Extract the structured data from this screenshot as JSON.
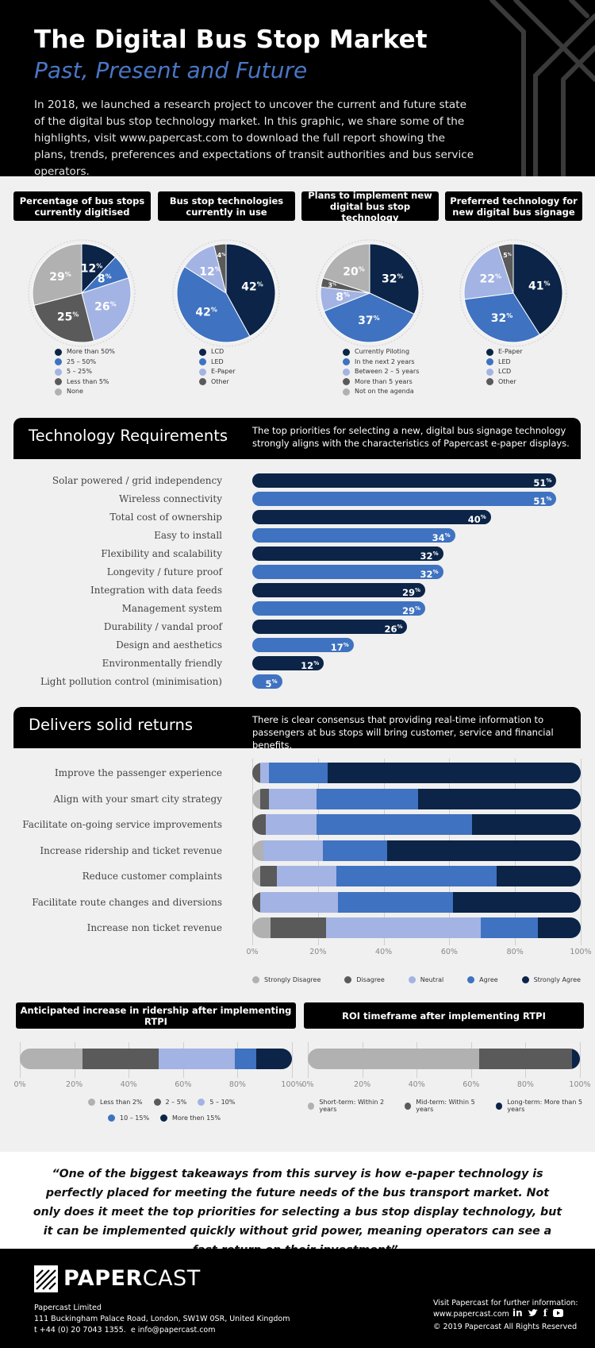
{
  "header": {
    "title": "The Digital Bus Stop Market",
    "subtitle": "Past, Present and Future",
    "intro": "In 2018, we launched a research project to uncover the current and future state of the digital bus stop technology market. In this graphic, we share some of the highlights, visit www.papercast.com to download the full report showing the plans, trends, preferences and expectations of transit authorities and bus service operators."
  },
  "colors": {
    "navy": "#0b2447",
    "blue": "#3f72c0",
    "light_blue": "#a3b3e3",
    "dark_grey": "#5a5a5a",
    "light_grey": "#b1b1b1",
    "black": "#000000",
    "accent_text": "#4a76c4"
  },
  "tech_section": {
    "title": "Technology Requirements",
    "text": "The top priorities for selecting a new, digital bus signage technology strongly aligns with the characteristics of Papercast e-paper displays."
  },
  "returns_section": {
    "title": "Delivers solid returns",
    "text": "There is clear consensus that providing real-time information to passengers at bus stops will bring customer, service and financial benefits."
  },
  "quote": "“One of the biggest takeaways from this survey is how e-paper technology is perfectly placed for meeting the future needs of the bus transport market. Not only does it meet the top priorities for selecting a bus stop display technology, but it can be implemented quickly without grid power, meaning operators can see a fast return on their investment”.",
  "footer": {
    "brand": "PAPER",
    "brand2": "CAST",
    "company": "Papercast Limited",
    "address": "111 Buckingham Palace Road, London, SW1W 0SR, United Kingdom",
    "phone": "t +44 (0) 20 7043 1355.",
    "email": "e info@papercast.com",
    "visit": "Visit Papercast for further information:",
    "website": "www.papercast.com",
    "copyright": "© 2019 Papercast All Rights Reserved"
  },
  "chart_data": [
    {
      "type": "pie",
      "title": "Percentage of bus stops currently digitised",
      "slices": [
        {
          "name": "More than 50%",
          "value": 12,
          "color": "#0b2447"
        },
        {
          "name": "25 – 50%",
          "value": 8,
          "color": "#3f72c0"
        },
        {
          "name": "5 – 25%",
          "value": 26,
          "color": "#a3b3e3"
        },
        {
          "name": "Less than 5%",
          "value": 25,
          "color": "#5a5a5a"
        },
        {
          "name": "None",
          "value": 29,
          "color": "#b1b1b1"
        }
      ]
    },
    {
      "type": "pie",
      "title": "Bus stop technologies currently in use",
      "slices": [
        {
          "name": "LCD",
          "value": 42,
          "color": "#0b2447"
        },
        {
          "name": "LED",
          "value": 42,
          "color": "#3f72c0"
        },
        {
          "name": "E-Paper",
          "value": 12,
          "color": "#a3b3e3"
        },
        {
          "name": "Other",
          "value": 4,
          "color": "#5a5a5a"
        }
      ]
    },
    {
      "type": "pie",
      "title": "Plans to implement new digital bus stop technology",
      "slices": [
        {
          "name": "Currently Piloting",
          "value": 32,
          "color": "#0b2447"
        },
        {
          "name": "In the next 2 years",
          "value": 37,
          "color": "#3f72c0"
        },
        {
          "name": "Between 2 – 5 years",
          "value": 8,
          "color": "#a3b3e3"
        },
        {
          "name": "More than 5 years",
          "value": 3,
          "color": "#5a5a5a"
        },
        {
          "name": "Not on the agenda",
          "value": 20,
          "color": "#b1b1b1"
        }
      ]
    },
    {
      "type": "pie",
      "title": "Preferred technology for new digital bus signage",
      "slices": [
        {
          "name": "E-Paper",
          "value": 41,
          "color": "#0b2447"
        },
        {
          "name": "LED",
          "value": 32,
          "color": "#3f72c0"
        },
        {
          "name": "LCD",
          "value": 22,
          "color": "#a3b3e3"
        },
        {
          "name": "Other",
          "value": 5,
          "color": "#5a5a5a"
        }
      ]
    },
    {
      "type": "bar",
      "title": "Technology Requirements",
      "categories": [
        "Solar powered / grid independency",
        "Wireless connectivity",
        "Total cost of ownership",
        "Easy to install",
        "Flexibility and scalability",
        "Longevity / future proof",
        "Integration with data feeds",
        "Management system",
        "Durability / vandal proof",
        "Design and aesthetics",
        "Environmentally friendly",
        "Light pollution control (minimisation)"
      ],
      "values": [
        51,
        51,
        40,
        34,
        32,
        32,
        29,
        29,
        26,
        17,
        12,
        5
      ],
      "colors": [
        "#0b2447",
        "#3f72c0",
        "#0b2447",
        "#3f72c0",
        "#0b2447",
        "#3f72c0",
        "#0b2447",
        "#3f72c0",
        "#0b2447",
        "#3f72c0",
        "#0b2447",
        "#3f72c0"
      ],
      "unit": "%"
    },
    {
      "type": "bar",
      "title": "Delivers solid returns",
      "stacked": true,
      "categories": [
        "Improve the passenger experience",
        "Align with your smart city strategy",
        "Facilitate on-going service improvements",
        "Increase ridership and ticket revenue",
        "Reduce customer complaints",
        "Facilitate route changes and diversions",
        "Increase non ticket revenue"
      ],
      "series": [
        {
          "name": "Strongly Disagree",
          "color": "#b1b1b1",
          "values": [
            0,
            2.5,
            0,
            3.5,
            2.5,
            0,
            5.5
          ]
        },
        {
          "name": "Disagree",
          "color": "#5a5a5a",
          "values": [
            2.5,
            2.5,
            4,
            0,
            5,
            2.5,
            17
          ]
        },
        {
          "name": "Neutral",
          "color": "#a3b3e3",
          "values": [
            2.5,
            14.5,
            15.5,
            18,
            18,
            23.5,
            47
          ]
        },
        {
          "name": "Agree",
          "color": "#3f72c0",
          "values": [
            18,
            31,
            47.5,
            19.5,
            49,
            35,
            17.5
          ]
        },
        {
          "name": "Strongly Agree",
          "color": "#0b2447",
          "values": [
            77,
            49.5,
            33,
            59,
            25.5,
            39,
            13
          ]
        }
      ],
      "xticks": [
        "0%",
        "20%",
        "40%",
        "60%",
        "80%",
        "100%"
      ]
    },
    {
      "type": "bar",
      "title": "Anticipated increase in ridership after implementing RTPI",
      "stacked": true,
      "series": [
        {
          "name": "Less than 2%",
          "color": "#b1b1b1",
          "value": 23
        },
        {
          "name": "2 – 5%",
          "color": "#5a5a5a",
          "value": 28
        },
        {
          "name": "5 – 10%",
          "color": "#a3b3e3",
          "value": 28
        },
        {
          "name": "10 – 15%",
          "color": "#3f72c0",
          "value": 8
        },
        {
          "name": "More then 15%",
          "color": "#0b2447",
          "value": 13
        }
      ],
      "xticks": [
        "0%",
        "20%",
        "40%",
        "60%",
        "80%",
        "100%"
      ]
    },
    {
      "type": "bar",
      "title": "ROI timeframe after implementing RTPI",
      "stacked": true,
      "series": [
        {
          "name": "Short-term: Within 2 years",
          "color": "#b1b1b1",
          "value": 63
        },
        {
          "name": "Mid-term: Within 5 years",
          "color": "#5a5a5a",
          "value": 34
        },
        {
          "name": "Long-term: More than 5 years",
          "color": "#0b2447",
          "value": 3
        }
      ],
      "xticks": [
        "0%",
        "20%",
        "40%",
        "60%",
        "80%",
        "100%"
      ]
    }
  ]
}
